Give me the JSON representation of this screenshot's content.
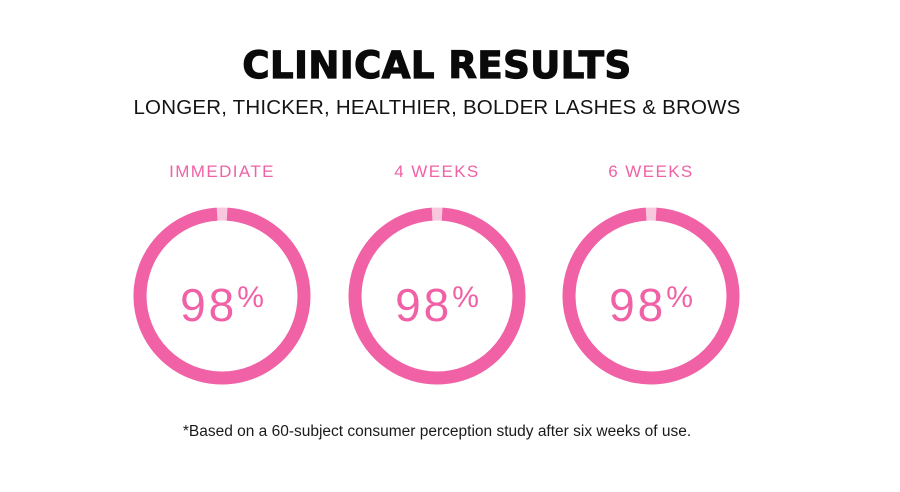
{
  "header": {
    "title": "CLINICAL RESULTS",
    "subtitle": "LONGER, THICKER, HEALTHIER, BOLDER LASHES & BROWS"
  },
  "colors": {
    "accent": "#f061a6",
    "track": "#f8c9de",
    "text": "#111111"
  },
  "stats": [
    {
      "label": "IMMEDIATE",
      "value": "98",
      "unit": "%",
      "fraction": 0.98
    },
    {
      "label": "4 WEEKS",
      "value": "98",
      "unit": "%",
      "fraction": 0.98
    },
    {
      "label": "6 WEEKS",
      "value": "98",
      "unit": "%",
      "fraction": 0.98
    }
  ],
  "footnote": "*Based on a 60-subject consumer perception study after six weeks of use."
}
